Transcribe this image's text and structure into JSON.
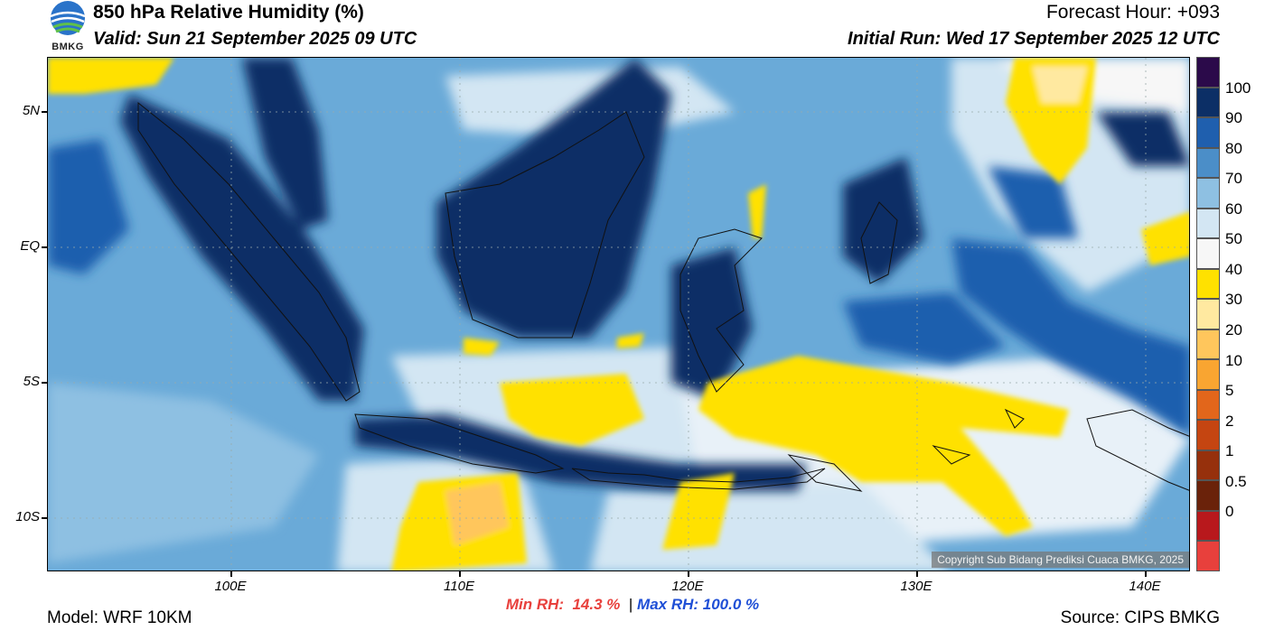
{
  "header": {
    "title": "850 hPa Relative Humidity (%)",
    "valid": "Valid: Sun 21 September 2025 09 UTC",
    "forecast_hour": "Forecast Hour: +093",
    "initial_run": "Initial Run: Wed 17 September 2025 12 UTC"
  },
  "logo": {
    "text": "BMKG",
    "icon": "bmkg-logo-icon"
  },
  "map": {
    "lat_labels": [
      "5N",
      "EQ",
      "5S",
      "10S"
    ],
    "lon_labels": [
      "100E",
      "110E",
      "120E",
      "130E",
      "140E"
    ],
    "copyright": "Copyright Sub Bidang Prediksi Cuaca BMKG, 2025"
  },
  "colorbar": {
    "labels": [
      "100",
      "90",
      "80",
      "70",
      "60",
      "50",
      "40",
      "30",
      "20",
      "10",
      "5",
      "2",
      "1",
      "0.5",
      "0"
    ],
    "colors": [
      "#2b0a4a",
      "#0c2f66",
      "#1f5fae",
      "#4b8ec8",
      "#8ec0e2",
      "#d3e6f3",
      "#f7f7f7",
      "#ffe100",
      "#ffe9a0",
      "#ffc65c",
      "#f9a531",
      "#e2661b",
      "#c54511",
      "#96300c",
      "#6a220a",
      "#b8181c",
      "#e8403c"
    ]
  },
  "stats": {
    "min_rh": "Min RH:  14.3 %",
    "separator": "|",
    "max_rh": "Max RH: 100.0 %"
  },
  "footer": {
    "model": "Model: WRF 10KM",
    "source": "Source: CIPS BMKG"
  }
}
